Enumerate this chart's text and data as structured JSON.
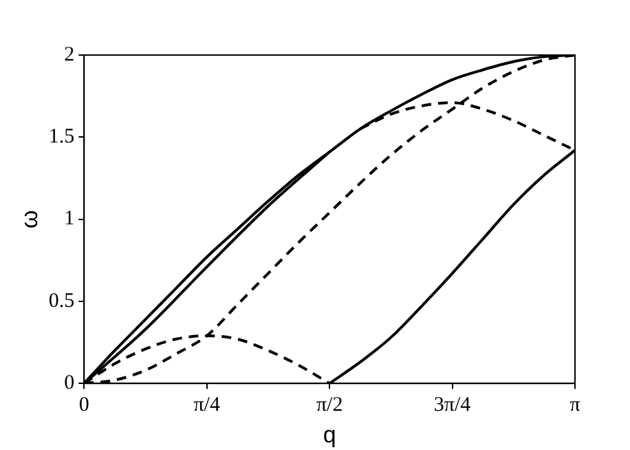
{
  "chart_data": {
    "type": "line",
    "xlabel": "q",
    "ylabel": "ω",
    "xlim": [
      0,
      3.1416
    ],
    "ylim": [
      0,
      2
    ],
    "xticks": [
      0,
      {
        "value": 0.7854,
        "label": "π/4"
      },
      {
        "value": 1.5708,
        "label": "π/2"
      },
      {
        "value": 2.3562,
        "label": "3π/4"
      },
      {
        "value": 3.1416,
        "label": "π"
      }
    ],
    "yticks": [
      0,
      0.5,
      1,
      1.5,
      2
    ],
    "grid": false,
    "legend": false,
    "series": [
      {
        "color": "#000000",
        "line_style": "solid",
        "x": [
          0,
          0.1963,
          0.3927,
          0.589,
          0.7854,
          0.9817,
          1.1781,
          1.3744,
          1.5708,
          1.7671,
          1.9635,
          2.1598,
          2.3562,
          2.5525,
          2.7489,
          2.9452,
          3.1416
        ],
        "values": [
          0,
          0.2,
          0.39,
          0.58,
          0.77,
          0.94,
          1.11,
          1.27,
          1.41,
          1.55,
          1.66,
          1.76,
          1.85,
          1.91,
          1.96,
          1.99,
          2
        ]
      },
      {
        "color": "#000000",
        "line_style": "solid",
        "x": [
          0,
          0.3927,
          0.7854,
          1.1781,
          1.5708
        ],
        "values": [
          0,
          0.33,
          0.71,
          1.08,
          1.41
        ]
      },
      {
        "color": "#000000",
        "line_style": "dashed",
        "x": [
          0,
          0.1963,
          0.3927,
          0.589,
          0.7854,
          0.9817,
          1.1781,
          1.3744,
          1.5708
        ],
        "values": [
          0,
          0.12,
          0.21,
          0.27,
          0.29,
          0.27,
          0.2,
          0.11,
          0
        ]
      },
      {
        "color": "#000000",
        "line_style": "dashed",
        "x": [
          0,
          0.1963,
          0.3927,
          0.589,
          0.7854,
          0.9817,
          1.1781,
          1.3744,
          1.5708,
          1.7671,
          1.9635,
          2.1598,
          2.3562,
          2.5525,
          2.7489,
          2.9452,
          3.1416
        ],
        "values": [
          0,
          0.02,
          0.08,
          0.18,
          0.29,
          0.48,
          0.67,
          0.86,
          1.04,
          1.22,
          1.39,
          1.54,
          1.67,
          1.8,
          1.9,
          1.97,
          2
        ]
      },
      {
        "color": "#000000",
        "line_style": "dashed",
        "x": [
          1.7671,
          1.9635,
          2.1598,
          2.3562,
          2.5525,
          2.7489,
          2.9452,
          3.1416
        ],
        "values": [
          1.55,
          1.64,
          1.69,
          1.71,
          1.67,
          1.6,
          1.51,
          1.42
        ]
      },
      {
        "color": "#000000",
        "line_style": "solid",
        "x": [
          1.5708,
          1.7671,
          1.9635,
          2.1598,
          2.3562,
          2.5525,
          2.7489,
          2.9452,
          3.1416
        ],
        "values": [
          0,
          0.13,
          0.28,
          0.47,
          0.67,
          0.88,
          1.09,
          1.27,
          1.42
        ]
      }
    ]
  }
}
